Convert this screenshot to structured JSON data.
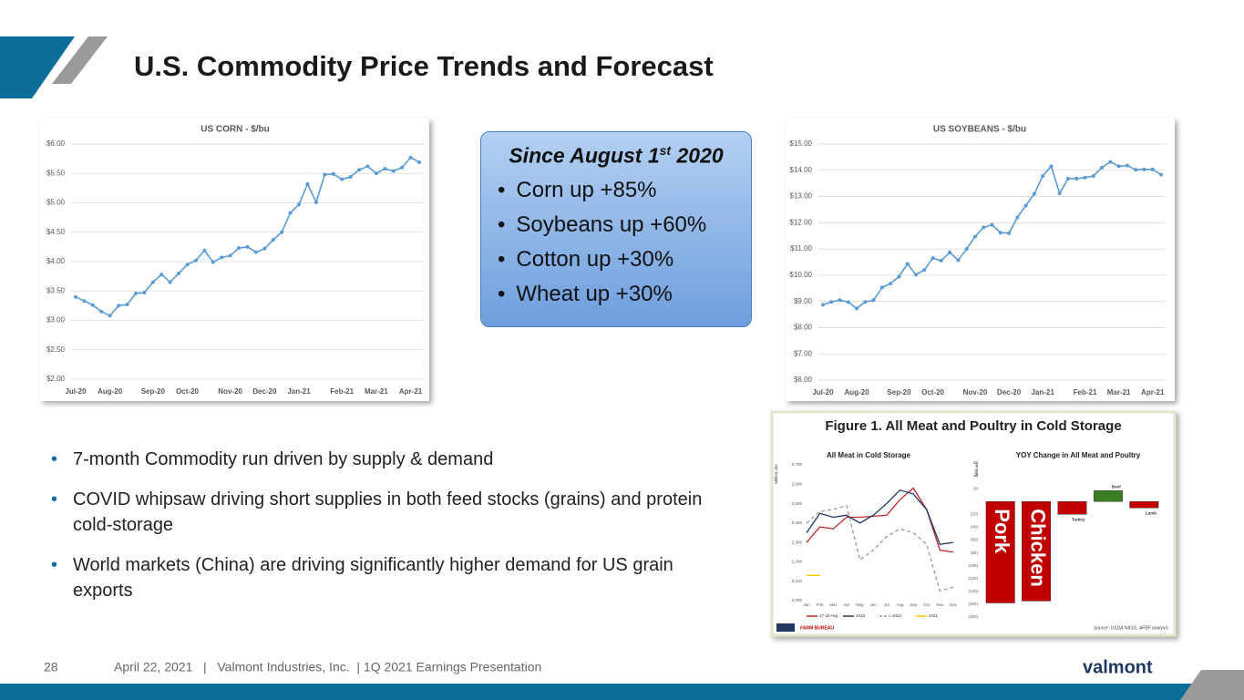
{
  "title": "U.S. Commodity Price Trends and Forecast",
  "callout": {
    "heading": "Since August 1",
    "heading_sup": "st",
    "heading_tail": " 2020",
    "items": [
      "Corn up +85%",
      "Soybeans up +60%",
      "Cotton up +30%",
      "Wheat up +30%"
    ]
  },
  "bullets": [
    "7-month Commodity run driven by supply & demand",
    "COVID whipsaw driving short supplies in both feed stocks (grains) and protein cold-storage",
    "World markets (China) are driving significantly higher demand for US grain exports"
  ],
  "figure": {
    "title": "Figure 1. All Meat and Poultry in Cold Storage",
    "source": "Source: USDA NASS, AFBF analysis",
    "brand": "FARM BUREAU"
  },
  "footer": {
    "page": "28",
    "text": "April 22, 2021   |   Valmont Industries, Inc.  | 1Q 2021 Earnings Presentation",
    "logo": "valmont"
  },
  "chart_data": [
    {
      "type": "line",
      "title": "US CORN - $/bu",
      "color": "#5b9bd5",
      "markers": true,
      "grid": true,
      "categories": [
        "Jul-20",
        null,
        null,
        null,
        "Aug-20",
        null,
        null,
        null,
        null,
        "Sep-20",
        null,
        null,
        null,
        "Oct-20",
        null,
        null,
        null,
        null,
        "Nov-20",
        null,
        null,
        null,
        "Dec-20",
        null,
        null,
        null,
        "Jan-21",
        null,
        null,
        null,
        null,
        "Feb-21",
        null,
        null,
        null,
        "Mar-21",
        null,
        null,
        null,
        "Apr-21",
        null
      ],
      "values": [
        3.4,
        3.33,
        3.26,
        3.15,
        3.08,
        3.25,
        3.27,
        3.46,
        3.47,
        3.65,
        3.78,
        3.65,
        3.8,
        3.95,
        4.02,
        4.19,
        3.99,
        4.07,
        4.1,
        4.23,
        4.25,
        4.16,
        4.22,
        4.37,
        4.5,
        4.83,
        4.97,
        5.32,
        5.01,
        5.48,
        5.49,
        5.4,
        5.44,
        5.56,
        5.62,
        5.5,
        5.58,
        5.54,
        5.6,
        5.77,
        5.69
      ],
      "ylim": [
        2,
        6
      ],
      "yticks": [
        {
          "value": 2,
          "label": "$2.00"
        },
        {
          "value": 2.5,
          "label": "$2.50"
        },
        {
          "value": 3,
          "label": "$3.00"
        },
        {
          "value": 3.5,
          "label": "$3.50"
        },
        {
          "value": 4,
          "label": "$4.00"
        },
        {
          "value": 4.5,
          "label": "$4.50"
        },
        {
          "value": 5,
          "label": "$5.00"
        },
        {
          "value": 5.5,
          "label": "$5.50"
        },
        {
          "value": 6,
          "label": "$6.00"
        }
      ]
    },
    {
      "type": "line",
      "title": "US SOYBEANS - $/bu",
      "color": "#5b9bd5",
      "markers": true,
      "grid": true,
      "categories": [
        "Jul-20",
        null,
        null,
        null,
        "Aug-20",
        null,
        null,
        null,
        null,
        "Sep-20",
        null,
        null,
        null,
        "Oct-20",
        null,
        null,
        null,
        null,
        "Nov-20",
        null,
        null,
        null,
        "Dec-20",
        null,
        null,
        null,
        "Jan-21",
        null,
        null,
        null,
        null,
        "Feb-21",
        null,
        null,
        null,
        "Mar-21",
        null,
        null,
        null,
        "Apr-21",
        null
      ],
      "values": [
        8.87,
        8.98,
        9.05,
        8.97,
        8.73,
        8.98,
        9.05,
        9.53,
        9.68,
        9.95,
        10.43,
        10.02,
        10.2,
        10.65,
        10.55,
        10.87,
        10.57,
        11.0,
        11.47,
        11.82,
        11.92,
        11.62,
        11.6,
        12.2,
        12.65,
        13.1,
        13.78,
        14.15,
        13.12,
        13.68,
        13.68,
        13.72,
        13.78,
        14.1,
        14.32,
        14.15,
        14.18,
        14.02,
        14.03,
        14.03,
        13.83
      ],
      "ylim": [
        6,
        15
      ],
      "yticks": [
        {
          "value": 6,
          "label": "$6.00"
        },
        {
          "value": 7,
          "label": "$7.00"
        },
        {
          "value": 8,
          "label": "$8.00"
        },
        {
          "value": 9,
          "label": "$9.00"
        },
        {
          "value": 10,
          "label": "$10.00"
        },
        {
          "value": 11,
          "label": "$11.00"
        },
        {
          "value": 12,
          "label": "$12.00"
        },
        {
          "value": 13,
          "label": "$13.00"
        },
        {
          "value": 14,
          "label": "$14.00"
        },
        {
          "value": 15,
          "label": "$15.00"
        }
      ]
    },
    {
      "type": "line",
      "title": "All Meat in Cold Storage",
      "y_label": "Million Lbs",
      "grid": false,
      "categories": [
        "Jan",
        "Feb",
        "Mar",
        "Apr",
        "May",
        "Jun",
        "Jul",
        "Aug",
        "Sep",
        "Oct",
        "Nov",
        "Dec"
      ],
      "series": [
        {
          "name": "17-19 Avg",
          "color": "#c0282d",
          "values": [
            2300,
            2380,
            2370,
            2430,
            2430,
            2435,
            2440,
            2520,
            2580,
            2470,
            2260,
            2250
          ]
        },
        {
          "name": "2019",
          "color": "#1f3864",
          "values": [
            2350,
            2450,
            2430,
            2440,
            2400,
            2440,
            2500,
            2570,
            2550,
            2470,
            2290,
            2300
          ]
        },
        {
          "name": "2020",
          "color": "#999999",
          "dashed": true,
          "values": [
            2400,
            2460,
            2470,
            2490,
            2210,
            2260,
            2330,
            2370,
            2350,
            2290,
            2050,
            2070
          ]
        },
        {
          "name": "2021",
          "color": "#f5c400",
          "values": [
            2130,
            2130,
            null,
            null,
            null,
            null,
            null,
            null,
            null,
            null,
            null,
            null
          ]
        }
      ],
      "ylim": [
        2000,
        2700
      ],
      "yticks": [
        {
          "value": 2000,
          "label": "2,000"
        },
        {
          "value": 2100,
          "label": "2,100"
        },
        {
          "value": 2200,
          "label": "2,200"
        },
        {
          "value": 2300,
          "label": "2,300"
        },
        {
          "value": 2400,
          "label": "2,400"
        },
        {
          "value": 2500,
          "label": "2,500"
        },
        {
          "value": 2600,
          "label": "2,600"
        },
        {
          "value": 2700,
          "label": "2,700"
        }
      ]
    },
    {
      "type": "bar",
      "title": "YOY Change in All Meat and Poultry",
      "y_label": "Millions",
      "grid": false,
      "categories": [
        "Pork",
        "Chicken",
        "Turkey",
        "Beef",
        "Lamb"
      ],
      "values": [
        -158,
        -155,
        -20,
        17,
        -10
      ],
      "colors": [
        "#c00000",
        "#c00000",
        "#c00000",
        "#3a7d22",
        "#c00000"
      ],
      "ylim": [
        -180,
        60
      ],
      "yticks": [
        60,
        40,
        20,
        {
          "value": 0,
          "label": "-"
        },
        {
          "value": -20,
          "label": "(20)"
        },
        {
          "value": -40,
          "label": "(40)"
        },
        {
          "value": -60,
          "label": "(60)"
        },
        {
          "value": -80,
          "label": "(80)"
        },
        {
          "value": -100,
          "label": "(100)"
        },
        {
          "value": -120,
          "label": "(120)"
        },
        {
          "value": -140,
          "label": "(140)"
        },
        {
          "value": -160,
          "label": "(160)"
        },
        {
          "value": -180,
          "label": "(180)"
        }
      ]
    }
  ]
}
